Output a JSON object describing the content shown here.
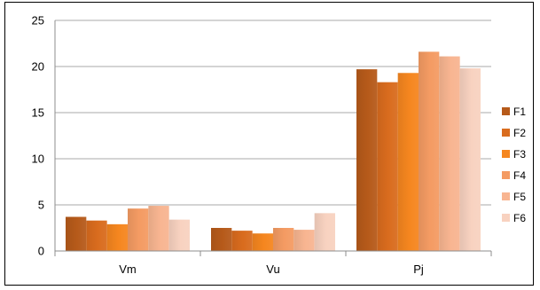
{
  "chart_data": {
    "type": "bar",
    "categories": [
      "Vm",
      "Vu",
      "Pj"
    ],
    "series": [
      {
        "name": "F1",
        "color": "#B65A1A",
        "values": [
          3.7,
          2.5,
          19.7
        ]
      },
      {
        "name": "F2",
        "color": "#D96C1E",
        "values": [
          3.3,
          2.2,
          18.3
        ]
      },
      {
        "name": "F3",
        "color": "#F5861F",
        "values": [
          2.9,
          1.9,
          19.3
        ]
      },
      {
        "name": "F4",
        "color": "#F49B63",
        "values": [
          4.6,
          2.5,
          21.6
        ]
      },
      {
        "name": "F5",
        "color": "#F8B591",
        "values": [
          4.9,
          2.3,
          21.1
        ]
      },
      {
        "name": "F6",
        "color": "#F8D2C0",
        "values": [
          3.4,
          4.1,
          19.8
        ]
      }
    ],
    "ylim": [
      0,
      25
    ],
    "yticks": [
      0,
      5,
      10,
      15,
      20,
      25
    ],
    "grid": true,
    "legend": "right"
  }
}
